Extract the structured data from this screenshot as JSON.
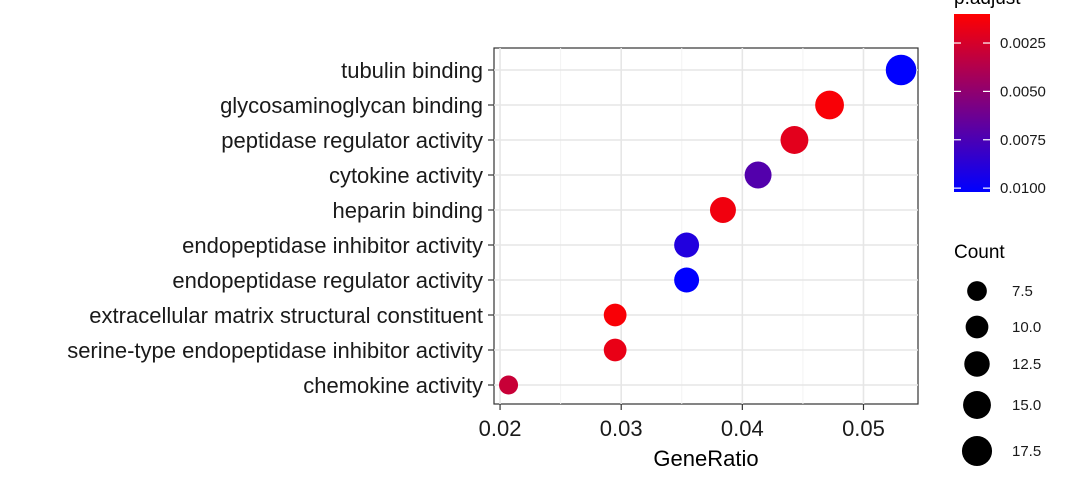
{
  "chart_data": {
    "type": "scatter",
    "xlabel": "GeneRatio",
    "xlim": [
      0.0195,
      0.0545
    ],
    "xticks": [
      "0.02",
      "0.03",
      "0.04",
      "0.05"
    ],
    "xtick_values": [
      0.02,
      0.03,
      0.04,
      0.05
    ],
    "grid": true,
    "categories": [
      "tubulin binding",
      "glycosaminoglycan binding",
      "peptidase regulator activity",
      "cytokine activity",
      "heparin binding",
      "endopeptidase inhibitor activity",
      "endopeptidase regulator activity",
      "extracellular matrix structural constituent",
      "serine-type endopeptidase inhibitor activity",
      "chemokine activity"
    ],
    "points": [
      {
        "term": "tubulin binding",
        "gene_ratio": 0.0531,
        "count": 18,
        "p_adjust": 0.0102
      },
      {
        "term": "glycosaminoglycan binding",
        "gene_ratio": 0.0472,
        "count": 16,
        "p_adjust": 0.0012
      },
      {
        "term": "peptidase regulator activity",
        "gene_ratio": 0.0443,
        "count": 15,
        "p_adjust": 0.002
      },
      {
        "term": "cytokine activity",
        "gene_ratio": 0.0413,
        "count": 14,
        "p_adjust": 0.0072
      },
      {
        "term": "heparin binding",
        "gene_ratio": 0.0384,
        "count": 13,
        "p_adjust": 0.0015
      },
      {
        "term": "endopeptidase inhibitor activity",
        "gene_ratio": 0.0354,
        "count": 12,
        "p_adjust": 0.009
      },
      {
        "term": "endopeptidase regulator activity",
        "gene_ratio": 0.0354,
        "count": 12,
        "p_adjust": 0.0102
      },
      {
        "term": "extracellular matrix structural constituent",
        "gene_ratio": 0.0295,
        "count": 10,
        "p_adjust": 0.0012
      },
      {
        "term": "serine-type endopeptidase inhibitor activity",
        "gene_ratio": 0.0295,
        "count": 10,
        "p_adjust": 0.0018
      },
      {
        "term": "chemokine activity",
        "gene_ratio": 0.0207,
        "count": 7,
        "p_adjust": 0.003
      }
    ],
    "color_legend": {
      "title": "p.adjust",
      "breaks": [
        0.0025,
        0.005,
        0.0075,
        0.01
      ],
      "labels": [
        "0.0025",
        "0.0050",
        "0.0075",
        "0.0100"
      ],
      "range": [
        0.001,
        0.0102
      ],
      "low_color": "#ff0000",
      "high_color": "#0000ff"
    },
    "size_legend": {
      "title": "Count",
      "breaks": [
        7.5,
        10.0,
        12.5,
        15.0,
        17.5
      ],
      "labels": [
        "7.5",
        "10.0",
        "12.5",
        "15.0",
        "17.5"
      ]
    }
  }
}
